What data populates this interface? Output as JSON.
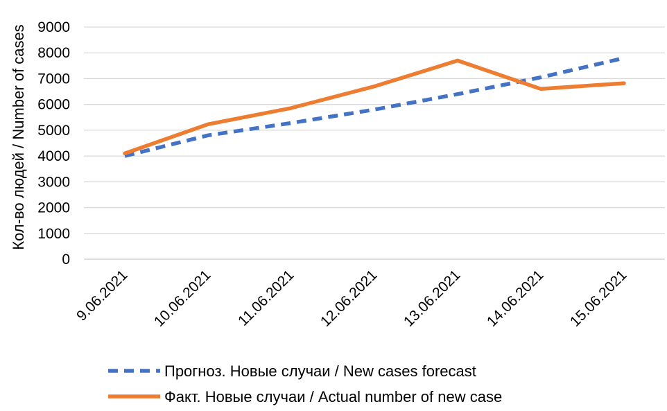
{
  "chart_data": {
    "type": "line",
    "ylabel": "Кол-во людей / Number of cases",
    "xlabel": "",
    "ylim": [
      0,
      9000
    ],
    "yticks": [
      0,
      1000,
      2000,
      3000,
      4000,
      5000,
      6000,
      7000,
      8000,
      9000
    ],
    "categories": [
      "9.06.2021",
      "10.06.2021",
      "11.06.2021",
      "12.06.2021",
      "13.06.2021",
      "14.06.2021",
      "15.06.2021"
    ],
    "series": [
      {
        "name": "Прогноз. Новые случаи / New cases forecast",
        "values": [
          4000,
          4800,
          5280,
          5800,
          6400,
          7050,
          7800
        ],
        "color": "#4472C4",
        "style": "dashed"
      },
      {
        "name": "Факт. Новые случаи / Actual number of new case",
        "values": [
          4100,
          5230,
          5860,
          6700,
          7700,
          6600,
          6820
        ],
        "color": "#ED7D31",
        "style": "solid"
      }
    ],
    "grid": true,
    "legend_position": "bottom"
  }
}
